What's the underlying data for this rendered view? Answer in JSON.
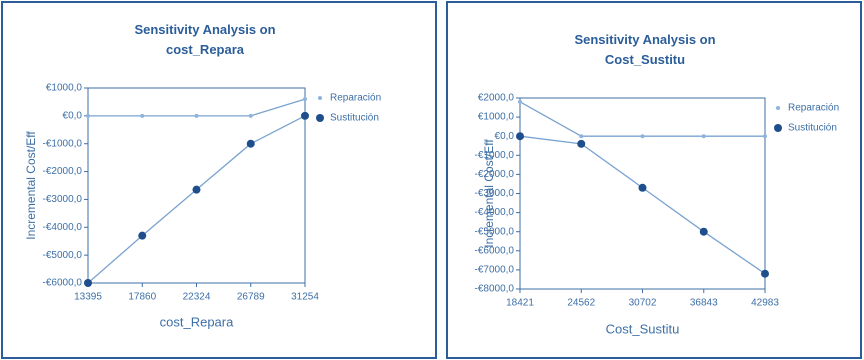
{
  "chart_data": [
    {
      "type": "line",
      "title": "Sensitivity Analysis on cost_Repara",
      "x_label": "cost_Repara",
      "y_label": "Incremental Cost/Eff",
      "x": [
        13395,
        17860,
        22324,
        26789,
        31254
      ],
      "xlim": [
        13395,
        31254
      ],
      "xticks": [
        13395,
        17860,
        22324,
        26789,
        31254
      ],
      "ylim": [
        -6000,
        1000
      ],
      "yticks": [
        {
          "value": 1000,
          "label": "€1000,0"
        },
        {
          "value": 0,
          "label": "€0,0"
        },
        {
          "value": -1000,
          "label": "-€1000,0"
        },
        {
          "value": -2000,
          "label": "-€2000,0"
        },
        {
          "value": -3000,
          "label": "-€3000,0"
        },
        {
          "value": -4000,
          "label": "-€4000,0"
        },
        {
          "value": -5000,
          "label": "-€5000,0"
        },
        {
          "value": -6000,
          "label": "-€6000,0"
        }
      ],
      "legend": "right",
      "series": [
        {
          "name": "Reparación",
          "color": "#8fb4dc",
          "values": [
            0,
            0,
            0,
            0,
            600
          ]
        },
        {
          "name": "Sustitución",
          "color": "#1f4e8c",
          "values": [
            -6000,
            -4300,
            -2650,
            -1000,
            0
          ]
        }
      ]
    },
    {
      "type": "line",
      "title": "Sensitivity Analysis on Cost_Sustitu",
      "x_label": "Cost_Sustitu",
      "y_label": "Incremental Cost/Eff",
      "x": [
        18421,
        24562,
        30702,
        36843,
        42983
      ],
      "xlim": [
        18421,
        42983
      ],
      "xticks": [
        18421,
        24562,
        30702,
        36843,
        42983
      ],
      "ylim": [
        -8000,
        2000
      ],
      "yticks": [
        {
          "value": 2000,
          "label": "€2000,0"
        },
        {
          "value": 1000,
          "label": "€1000,0"
        },
        {
          "value": 0,
          "label": "€0,0"
        },
        {
          "value": -1000,
          "label": "-€1000,0"
        },
        {
          "value": -2000,
          "label": "-€2000,0"
        },
        {
          "value": -3000,
          "label": "-€3000,0"
        },
        {
          "value": -4000,
          "label": "-€4000,0"
        },
        {
          "value": -5000,
          "label": "-€5000,0"
        },
        {
          "value": -6000,
          "label": "-€6000,0"
        },
        {
          "value": -7000,
          "label": "-€7000,0"
        },
        {
          "value": -8000,
          "label": "-€8000,0"
        }
      ],
      "legend": "right",
      "series": [
        {
          "name": "Reparación",
          "color": "#8fb4dc",
          "values": [
            1800,
            0,
            0,
            0,
            0
          ]
        },
        {
          "name": "Sustitución",
          "color": "#1f4e8c",
          "values": [
            0,
            -400,
            -2700,
            -5000,
            -7200
          ]
        }
      ]
    }
  ]
}
